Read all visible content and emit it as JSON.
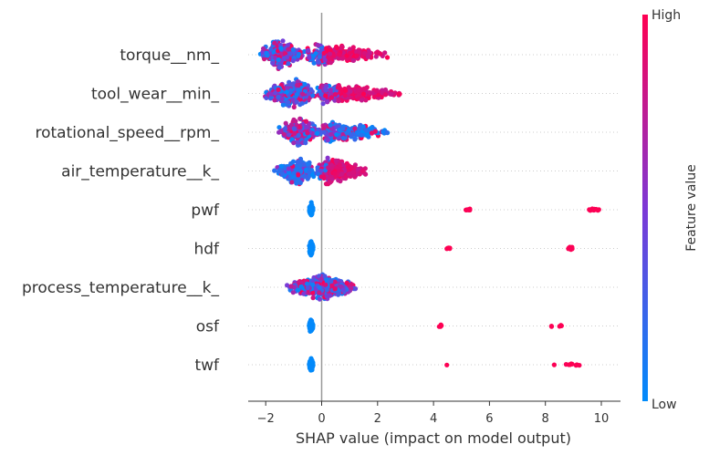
{
  "chart_data": {
    "type": "scatter",
    "subtype": "shap-beeswarm",
    "title": "",
    "xlabel": "SHAP value (impact on model output)",
    "ylabel": "",
    "xlim": [
      -2.6,
      10.6
    ],
    "xticks": [
      -2,
      0,
      2,
      4,
      6,
      8,
      10
    ],
    "tick_labels": [
      "−2",
      "0",
      "2",
      "4",
      "6",
      "8",
      "10"
    ],
    "zero_line": 0,
    "colorbar": {
      "title": "Feature value",
      "high_label": "High",
      "low_label": "Low",
      "low_color": "#008bfb",
      "high_color": "#ff0052"
    },
    "features": [
      {
        "name": "torque__nm_",
        "clusters": [
          {
            "min": -2.2,
            "max": -0.6,
            "mode": -1.5,
            "count": 260,
            "spread": 0.42,
            "colorMode": "mixed"
          },
          {
            "min": -0.6,
            "max": 2.4,
            "mode": 0.0,
            "count": 300,
            "spread": 0.32,
            "colorMode": "rightHigh"
          }
        ]
      },
      {
        "name": "tool_wear__min_",
        "clusters": [
          {
            "min": -2.1,
            "max": -0.2,
            "mode": -1.0,
            "count": 260,
            "spread": 0.42,
            "colorMode": "mixed"
          },
          {
            "min": -0.2,
            "max": 2.9,
            "mode": 0.1,
            "count": 280,
            "spread": 0.3,
            "colorMode": "rightHigh"
          }
        ]
      },
      {
        "name": "rotational_speed__rpm_",
        "clusters": [
          {
            "min": -1.6,
            "max": 0.0,
            "mode": -0.8,
            "count": 250,
            "spread": 0.42,
            "colorMode": "mixed"
          },
          {
            "min": 0.0,
            "max": 2.5,
            "mode": 0.2,
            "count": 250,
            "spread": 0.3,
            "colorMode": "rightLow"
          }
        ]
      },
      {
        "name": "air_temperature__k_",
        "clusters": [
          {
            "min": -1.7,
            "max": -0.2,
            "mode": -0.8,
            "count": 220,
            "spread": 0.4,
            "colorMode": "leftLow"
          },
          {
            "min": -0.2,
            "max": 1.6,
            "mode": 0.3,
            "count": 280,
            "spread": 0.38,
            "colorMode": "rightHigh"
          }
        ]
      },
      {
        "name": "pwf",
        "clusters": [
          {
            "min": -0.45,
            "max": -0.3,
            "mode": -0.38,
            "count": 110,
            "spread": 0.22,
            "colorMode": "low"
          },
          {
            "min": 5.1,
            "max": 5.4,
            "mode": 5.25,
            "count": 8,
            "spread": 0.04,
            "colorMode": "high"
          },
          {
            "min": 9.5,
            "max": 10.0,
            "mode": 9.75,
            "count": 12,
            "spread": 0.05,
            "colorMode": "high"
          }
        ]
      },
      {
        "name": "hdf",
        "clusters": [
          {
            "min": -0.45,
            "max": -0.3,
            "mode": -0.38,
            "count": 110,
            "spread": 0.22,
            "colorMode": "low"
          },
          {
            "min": 4.45,
            "max": 4.6,
            "mode": 4.52,
            "count": 5,
            "spread": 0.04,
            "colorMode": "high"
          },
          {
            "min": 8.8,
            "max": 9.05,
            "mode": 8.92,
            "count": 10,
            "spread": 0.05,
            "colorMode": "high"
          }
        ]
      },
      {
        "name": "process_temperature__k_",
        "clusters": [
          {
            "min": -1.3,
            "max": 1.3,
            "mode": 0.0,
            "count": 420,
            "spread": 0.36,
            "colorMode": "mixed"
          }
        ]
      },
      {
        "name": "osf",
        "clusters": [
          {
            "min": -0.45,
            "max": -0.3,
            "mode": -0.38,
            "count": 110,
            "spread": 0.22,
            "colorMode": "low"
          },
          {
            "min": 4.15,
            "max": 4.35,
            "mode": 4.25,
            "count": 6,
            "spread": 0.04,
            "colorMode": "high"
          },
          {
            "min": 8.2,
            "max": 8.25,
            "mode": 8.22,
            "count": 2,
            "spread": 0.02,
            "colorMode": "high"
          },
          {
            "min": 8.5,
            "max": 8.6,
            "mode": 8.55,
            "count": 4,
            "spread": 0.03,
            "colorMode": "high"
          }
        ]
      },
      {
        "name": "twf",
        "clusters": [
          {
            "min": -0.45,
            "max": -0.3,
            "mode": -0.38,
            "count": 110,
            "spread": 0.22,
            "colorMode": "low"
          },
          {
            "min": 4.45,
            "max": 4.5,
            "mode": 4.47,
            "count": 1,
            "spread": 0.02,
            "colorMode": "high"
          },
          {
            "min": 8.3,
            "max": 8.35,
            "mode": 8.32,
            "count": 1,
            "spread": 0.02,
            "colorMode": "high"
          },
          {
            "min": 8.7,
            "max": 9.25,
            "mode": 9.0,
            "count": 8,
            "spread": 0.05,
            "colorMode": "high"
          }
        ]
      }
    ]
  }
}
